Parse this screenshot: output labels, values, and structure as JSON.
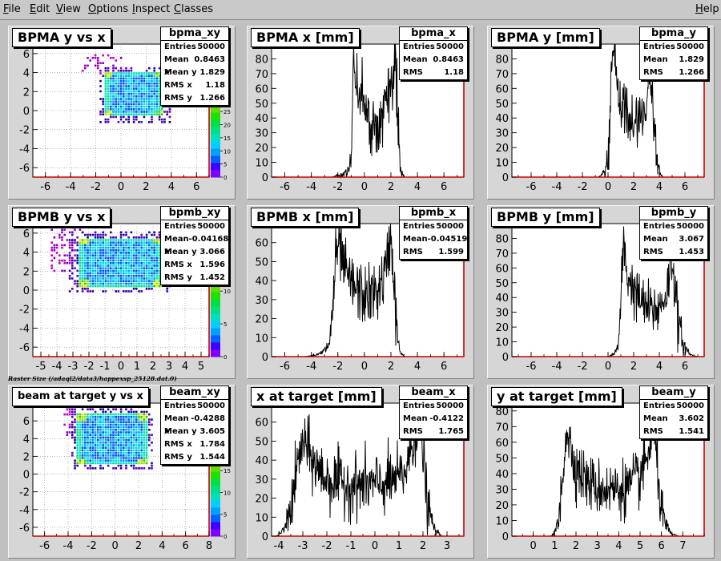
{
  "menubar": {
    "items": [
      {
        "label": "File",
        "u": "F",
        "rest": "ile"
      },
      {
        "label": "Edit",
        "u": "E",
        "rest": "dit"
      },
      {
        "label": "View",
        "u": "V",
        "rest": "iew"
      },
      {
        "label": "Options",
        "u": "O",
        "rest": "ptions"
      },
      {
        "label": "Inspect",
        "u": "I",
        "rest": "nspect"
      },
      {
        "label": "Classes",
        "u": "C",
        "rest": "lasses"
      }
    ],
    "help": {
      "label": "Help",
      "u": "H",
      "rest": "elp"
    }
  },
  "raster_label": "Raster Size (/adaql2/data3/happexsp_25128.dat.0)",
  "colors": {
    "hist_line": "#000000",
    "axis_red": "#cc0000",
    "plot_bg": "#ffffff",
    "frame_bg": "#d6d6d6"
  },
  "chart_data": [
    {
      "type": "heatmap",
      "title": "BPMA y vs x",
      "stats_name": "bpma_xy",
      "stats": [
        [
          "Entries",
          "50000"
        ],
        [
          "Mean x",
          "0.8463"
        ],
        [
          "Mean y",
          "1.829"
        ],
        [
          "RMS x",
          "1.18"
        ],
        [
          "RMS y",
          "1.266"
        ]
      ],
      "xlim": [
        -7,
        7
      ],
      "ylim": [
        -7,
        7
      ],
      "xticks": [
        -6,
        -4,
        -2,
        0,
        2,
        4,
        6
      ],
      "yticks": [
        -6,
        -4,
        -2,
        0,
        2,
        4,
        6
      ],
      "box": {
        "x": [
          -1.3,
          3.2
        ],
        "y": [
          -0.5,
          4.1
        ]
      },
      "halo": {
        "x": [
          -3.2,
          0.0
        ],
        "y": [
          4.0,
          6.0
        ]
      },
      "colorbar_ticks": [
        0,
        5,
        10,
        15,
        20,
        25
      ],
      "grid": true
    },
    {
      "type": "line",
      "title": "BPMA x [mm]",
      "stats_name": "bpma_x",
      "stats": [
        [
          "Entries",
          "50000"
        ],
        [
          "Mean",
          "0.8463"
        ],
        [
          "RMS",
          "1.18"
        ]
      ],
      "xlim": [
        -7,
        7.5
      ],
      "ylim": [
        0,
        90
      ],
      "xticks": [
        -6,
        -4,
        -2,
        0,
        2,
        4,
        6
      ],
      "yticks": [
        0,
        10,
        20,
        30,
        40,
        50,
        60,
        70,
        80,
        90
      ],
      "x": [
        -2.5,
        -2.0,
        -1.6,
        -1.2,
        -1.0,
        -0.9,
        -0.85,
        -0.8,
        -0.7,
        -0.5,
        -0.3,
        0.0,
        0.4,
        0.8,
        1.2,
        1.6,
        2.0,
        2.2,
        2.35,
        2.45,
        2.55,
        2.7,
        2.8,
        3.0
      ],
      "y": [
        0,
        1,
        2,
        5,
        15,
        40,
        65,
        84,
        72,
        60,
        52,
        45,
        38,
        35,
        38,
        45,
        60,
        75,
        85,
        70,
        30,
        10,
        3,
        0
      ],
      "noise": 10
    },
    {
      "type": "line",
      "title": "BPMA y [mm]",
      "stats_name": "bpma_y",
      "stats": [
        [
          "Entries",
          "50000"
        ],
        [
          "Mean",
          "1.829"
        ],
        [
          "RMS",
          "1.266"
        ]
      ],
      "xlim": [
        -7.5,
        7.5
      ],
      "ylim": [
        0,
        90
      ],
      "xticks": [
        -6,
        -4,
        -2,
        0,
        2,
        4,
        6
      ],
      "yticks": [
        0,
        10,
        20,
        30,
        40,
        50,
        60,
        70,
        80
      ],
      "x": [
        -0.8,
        -0.5,
        -0.2,
        0.0,
        0.1,
        0.2,
        0.3,
        0.4,
        0.6,
        0.9,
        1.3,
        1.7,
        2.1,
        2.5,
        2.8,
        3.0,
        3.2,
        3.3,
        3.4,
        3.6,
        3.8,
        4.0,
        4.3
      ],
      "y": [
        0,
        1,
        4,
        12,
        30,
        55,
        75,
        86,
        70,
        55,
        45,
        38,
        35,
        38,
        45,
        55,
        65,
        72,
        60,
        35,
        12,
        3,
        0
      ],
      "noise": 10
    },
    {
      "type": "heatmap",
      "title": "BPMB y vs x",
      "stats_name": "bpmb_xy",
      "stats": [
        [
          "Entries",
          "50000"
        ],
        [
          "Mean x",
          "-0.04168"
        ],
        [
          "Mean y",
          "3.066"
        ],
        [
          "RMS x",
          "1.596"
        ],
        [
          "RMS y",
          "1.452"
        ]
      ],
      "xlim": [
        -5.5,
        5.5
      ],
      "ylim": [
        -7,
        7
      ],
      "xticks": [
        -5,
        -4,
        -3,
        -2,
        -1,
        0,
        1,
        2,
        3,
        4,
        5
      ],
      "yticks": [
        -6,
        -4,
        -2,
        0,
        2,
        4,
        6
      ],
      "box": {
        "x": [
          -2.7,
          2.5
        ],
        "y": [
          0.5,
          5.6
        ]
      },
      "halo": {
        "x": [
          -4.5,
          -2.5
        ],
        "y": [
          2.0,
          6.5
        ]
      },
      "colorbar_ticks": [
        0,
        5,
        10
      ],
      "grid": true
    },
    {
      "type": "line",
      "title": "BPMB x [mm]",
      "stats_name": "bpmb_x",
      "stats": [
        [
          "Entries",
          "50000"
        ],
        [
          "Mean",
          "-0.04519"
        ],
        [
          "RMS",
          "1.599"
        ]
      ],
      "xlim": [
        -7,
        7.5
      ],
      "ylim": [
        0,
        70
      ],
      "xticks": [
        -6,
        -4,
        -2,
        0,
        2,
        4,
        6
      ],
      "yticks": [
        0,
        10,
        20,
        30,
        40,
        50,
        60,
        70
      ],
      "x": [
        -4.5,
        -3.5,
        -3.0,
        -2.6,
        -2.4,
        -2.2,
        -2.0,
        -1.8,
        -1.5,
        -1.0,
        -0.5,
        0.0,
        0.5,
        1.0,
        1.4,
        1.7,
        1.9,
        2.0,
        2.1,
        2.3,
        2.5,
        2.7,
        3.0
      ],
      "y": [
        0,
        1,
        3,
        8,
        25,
        48,
        58,
        55,
        45,
        38,
        35,
        32,
        32,
        35,
        40,
        48,
        60,
        66,
        55,
        30,
        10,
        2,
        0
      ],
      "noise": 8
    },
    {
      "type": "line",
      "title": "BPMB y [mm]",
      "stats_name": "bpmb_y",
      "stats": [
        [
          "Entries",
          "50000"
        ],
        [
          "Mean",
          "3.067"
        ],
        [
          "RMS",
          "1.453"
        ]
      ],
      "xlim": [
        -7.5,
        7.5
      ],
      "ylim": [
        0,
        90
      ],
      "xticks": [
        -6,
        -4,
        -2,
        0,
        2,
        4,
        6
      ],
      "yticks": [
        0,
        10,
        20,
        30,
        40,
        50,
        60,
        70,
        80
      ],
      "x": [
        0.0,
        0.5,
        0.8,
        1.0,
        1.1,
        1.2,
        1.3,
        1.5,
        2.0,
        2.5,
        3.0,
        3.5,
        4.0,
        4.3,
        4.6,
        4.8,
        4.9,
        5.0,
        5.2,
        5.5,
        6.0,
        6.5,
        7.0
      ],
      "y": [
        0,
        2,
        8,
        30,
        60,
        77,
        70,
        55,
        45,
        38,
        33,
        31,
        33,
        38,
        45,
        55,
        62,
        68,
        50,
        20,
        6,
        1,
        0
      ],
      "noise": 9
    },
    {
      "type": "heatmap",
      "title": "beam at target y vs x",
      "stats_name": "beam_xy",
      "stats": [
        [
          "Entries",
          "50000"
        ],
        [
          "Mean x",
          "-0.4288"
        ],
        [
          "Mean y",
          "3.605"
        ],
        [
          "RMS x",
          "1.784"
        ],
        [
          "RMS y",
          "1.544"
        ]
      ],
      "xlim": [
        -7,
        8
      ],
      "ylim": [
        -7,
        8
      ],
      "xticks": [
        -6,
        -4,
        -2,
        0,
        2,
        4,
        6,
        8
      ],
      "yticks": [
        -6,
        -4,
        -2,
        0,
        2,
        4,
        6
      ],
      "box": {
        "x": [
          -3.3,
          2.6
        ],
        "y": [
          1.2,
          6.9
        ]
      },
      "halo": {
        "x": [
          -4.5,
          -3.0
        ],
        "y": [
          4.5,
          7.5
        ]
      },
      "colorbar_ticks": [
        0,
        5,
        10,
        15
      ],
      "grid": true
    },
    {
      "type": "line",
      "title": "x at target [mm]",
      "stats_name": "beam_x",
      "stats": [
        [
          "Entries",
          "50000"
        ],
        [
          "Mean",
          "-0.4122"
        ],
        [
          "RMS",
          "1.765"
        ]
      ],
      "xlim": [
        -4.3,
        3.7
      ],
      "ylim": [
        0,
        70
      ],
      "xticks": [
        -4,
        -3,
        -2,
        -1,
        0,
        1,
        2,
        3
      ],
      "yticks": [
        0,
        10,
        20,
        30,
        40,
        50,
        60,
        70
      ],
      "x": [
        -4.1,
        -3.8,
        -3.6,
        -3.4,
        -3.2,
        -3.0,
        -2.8,
        -2.6,
        -2.3,
        -2.0,
        -1.5,
        -1.0,
        -0.5,
        0.0,
        0.5,
        1.0,
        1.3,
        1.5,
        1.7,
        1.85,
        1.95,
        2.05,
        2.2,
        2.5,
        2.8
      ],
      "y": [
        0,
        3,
        10,
        22,
        38,
        50,
        45,
        40,
        34,
        30,
        28,
        27,
        27,
        27,
        28,
        30,
        35,
        45,
        55,
        60,
        52,
        35,
        15,
        3,
        0
      ],
      "noise": 8
    },
    {
      "type": "line",
      "title": "y at target [mm]",
      "stats_name": "beam_y",
      "stats": [
        [
          "Entries",
          "50000"
        ],
        [
          "Mean",
          "3.602"
        ],
        [
          "RMS",
          "1.541"
        ]
      ],
      "xlim": [
        -1,
        8
      ],
      "ylim": [
        0,
        85
      ],
      "xticks": [
        0,
        1,
        2,
        3,
        4,
        5,
        6,
        7
      ],
      "yticks": [
        0,
        10,
        20,
        30,
        40,
        50,
        60,
        70,
        80
      ],
      "x": [
        0.8,
        1.0,
        1.2,
        1.4,
        1.5,
        1.6,
        1.7,
        1.9,
        2.2,
        2.6,
        3.0,
        3.5,
        4.0,
        4.5,
        5.0,
        5.3,
        5.5,
        5.6,
        5.75,
        5.9,
        6.1,
        6.4,
        6.8
      ],
      "y": [
        0,
        2,
        10,
        40,
        65,
        68,
        60,
        48,
        40,
        34,
        31,
        30,
        30,
        32,
        38,
        48,
        60,
        70,
        55,
        30,
        10,
        2,
        0
      ],
      "noise": 9
    }
  ]
}
